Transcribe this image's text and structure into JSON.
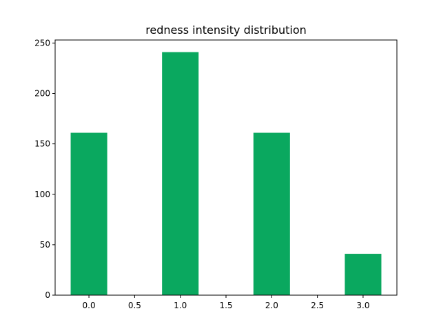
{
  "chart_data": {
    "type": "bar",
    "title": "redness intensity distribution",
    "xlabel": "",
    "ylabel": "",
    "x": [
      0,
      1,
      2,
      3
    ],
    "values": [
      161,
      241,
      161,
      41
    ],
    "bar_width": 0.4,
    "xlim": [
      -0.37,
      3.37
    ],
    "ylim": [
      0,
      253
    ],
    "xticks": [
      0.0,
      0.5,
      1.0,
      1.5,
      2.0,
      2.5,
      3.0
    ],
    "xtick_labels": [
      "0.0",
      "0.5",
      "1.0",
      "1.5",
      "2.0",
      "2.5",
      "3.0"
    ],
    "yticks": [
      0,
      50,
      100,
      150,
      200,
      250
    ],
    "ytick_labels": [
      "0",
      "50",
      "100",
      "150",
      "200",
      "250"
    ],
    "grid": false,
    "bar_color": "#0aa85f"
  }
}
